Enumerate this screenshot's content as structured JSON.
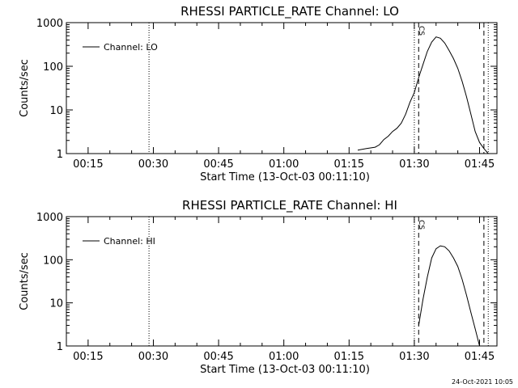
{
  "footer": {
    "timestamp": "24-Oct-2021 10:05"
  },
  "chart_data": [
    {
      "type": "line",
      "title": "RHESSI PARTICLE_RATE Channel: LO",
      "xlabel": "Start Time (13-Oct-03 00:11:10)",
      "ylabel": "Counts/sec",
      "y_scale": "log",
      "ylim": [
        1,
        1000
      ],
      "xlim": [
        "00:10",
        "01:49"
      ],
      "x_ticks": [
        "00:15",
        "00:30",
        "00:45",
        "01:00",
        "01:15",
        "01:30",
        "01:45"
      ],
      "y_ticks": [
        "1",
        "10",
        "100",
        "1000"
      ],
      "legend": {
        "position": "top-left",
        "entries": [
          "Channel: LO"
        ]
      },
      "annotations": [
        "CS"
      ],
      "vlines": [
        {
          "x": "00:29",
          "style": "dotted"
        },
        {
          "x": "01:30",
          "style": "dotted"
        },
        {
          "x": "01:31",
          "style": "dashed"
        },
        {
          "x": "01:46",
          "style": "dashed"
        },
        {
          "x": "01:47",
          "style": "dotted"
        }
      ],
      "series": [
        {
          "name": "Channel: LO",
          "x": [
            "01:17",
            "01:19",
            "01:21",
            "01:22",
            "01:23",
            "01:24",
            "01:25",
            "01:26",
            "01:27",
            "01:28",
            "01:29",
            "01:30",
            "01:31",
            "01:32",
            "01:33",
            "01:34",
            "01:35",
            "01:36",
            "01:37",
            "01:38",
            "01:39",
            "01:40",
            "01:41",
            "01:42",
            "01:43",
            "01:44",
            "01:45",
            "01:46",
            "01:47"
          ],
          "values": [
            1.2,
            1.3,
            1.4,
            1.6,
            2.1,
            2.5,
            3.2,
            3.8,
            5,
            8,
            15,
            25,
            55,
            110,
            220,
            360,
            470,
            440,
            340,
            230,
            150,
            90,
            45,
            20,
            8,
            3.2,
            1.8,
            1.3,
            1
          ]
        }
      ]
    },
    {
      "type": "line",
      "title": "RHESSI PARTICLE_RATE Channel: HI",
      "xlabel": "Start Time (13-Oct-03 00:11:10)",
      "ylabel": "Counts/sec",
      "y_scale": "log",
      "ylim": [
        1,
        1000
      ],
      "xlim": [
        "00:10",
        "01:49"
      ],
      "x_ticks": [
        "00:15",
        "00:30",
        "00:45",
        "01:00",
        "01:15",
        "01:30",
        "01:45"
      ],
      "y_ticks": [
        "1",
        "10",
        "100",
        "1000"
      ],
      "legend": {
        "position": "top-left",
        "entries": [
          "Channel: HI"
        ]
      },
      "annotations": [
        "CS"
      ],
      "vlines": [
        {
          "x": "00:29",
          "style": "dotted"
        },
        {
          "x": "01:30",
          "style": "dotted"
        },
        {
          "x": "01:31",
          "style": "dashed"
        },
        {
          "x": "01:46",
          "style": "dashed"
        },
        {
          "x": "01:47",
          "style": "dotted"
        }
      ],
      "series": [
        {
          "name": "Channel: HI",
          "x": [
            "01:31",
            "01:32",
            "01:33",
            "01:34",
            "01:35",
            "01:36",
            "01:37",
            "01:38",
            "01:39",
            "01:40",
            "01:41",
            "01:42",
            "01:43",
            "01:44",
            "01:45"
          ],
          "values": [
            3,
            12,
            40,
            110,
            180,
            210,
            200,
            160,
            110,
            70,
            35,
            15,
            6,
            2.5,
            1
          ]
        }
      ]
    }
  ]
}
